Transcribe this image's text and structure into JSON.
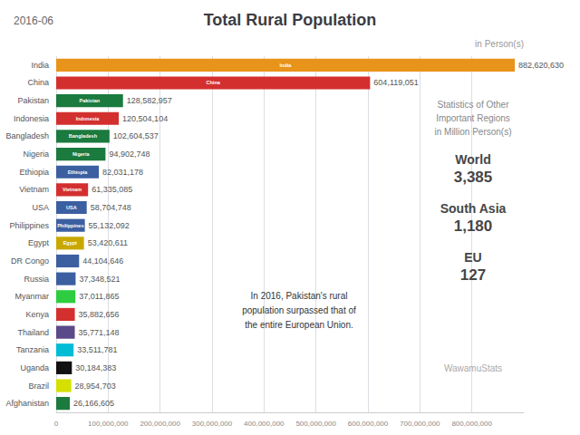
{
  "chart_data": {
    "type": "bar",
    "orientation": "horizontal",
    "title": "Total Rural Population",
    "subtitle": "2016-06",
    "categories": [
      "India",
      "China",
      "Pakistan",
      "Indonesia",
      "Bangladesh",
      "Nigeria",
      "Ethiopia",
      "Vietnam",
      "USA",
      "Philippines",
      "Egypt",
      "DR Congo",
      "Russia",
      "Myanmar",
      "Kenya",
      "Thailand",
      "Tanzania",
      "Uganda",
      "Brazil",
      "Afghanistan"
    ],
    "values": [
      882620630,
      604119051,
      128582957,
      120504104,
      102604537,
      94902748,
      82031178,
      61335085,
      58704748,
      55132092,
      53420611,
      44104646,
      37348521,
      37011865,
      35882656,
      35771148,
      33511781,
      30184383,
      28954703,
      26166605
    ],
    "colors": [
      "#E8931A",
      "#D32F2F",
      "#1B7A3E",
      "#D32F2F",
      "#1B7A3E",
      "#1B7A3E",
      "#3B5FA0",
      "#D32F2F",
      "#3B5FA0",
      "#3B5FA0",
      "#C8A800",
      "#3B5FA0",
      "#3B5FA0",
      "#2ECC40",
      "#D32F2F",
      "#5B4A8A",
      "#00BCD4",
      "#111111",
      "#D4E000",
      "#1B7A3E"
    ],
    "data_labels": true,
    "value_labels": [
      "882,620,630",
      "604,119,051",
      "128,582,957",
      "120,504,104",
      "102,604,537",
      "94,902,748",
      "82,031,178",
      "61,335,085",
      "58,704,748",
      "55,132,092",
      "53,420,611",
      "44,104,646",
      "37,348,521",
      "37,011,865",
      "35,882,656",
      "35,771,148",
      "33,511,781",
      "30,184,383",
      "28,954,703",
      "26,166,605"
    ],
    "inner_labels": [
      "India",
      "China",
      "Pakistan",
      "Indonesia",
      "Bangladesh",
      "Nigeria",
      "Ethiopia",
      "Vietnam",
      "USA",
      "Philippines",
      "Egypt",
      null,
      null,
      null,
      null,
      null,
      null,
      null,
      null,
      null
    ],
    "xlim": [
      0,
      900000000
    ],
    "xticks": [
      0,
      {
        "value": 100000000,
        "label": "100,000,000"
      },
      {
        "value": 200000000,
        "label": "200,000,000"
      },
      {
        "value": 300000000,
        "label": "300,000,000"
      },
      {
        "value": 400000000,
        "label": "400,000,000"
      },
      {
        "value": 500000000,
        "label": "500,000,000"
      },
      {
        "value": 600000000,
        "label": "600,000,000"
      },
      {
        "value": 700000000,
        "label": "700,000,000"
      },
      {
        "value": 800000000,
        "label": "800,000,000"
      }
    ],
    "grid": true,
    "annotations": [
      "in Person(s)",
      "Statistics of Other\nImportant Regions\nin Million Person(s)",
      "World",
      "3,385",
      "South Asia",
      "1,180",
      "EU",
      "127",
      "In 2016, Pakistan's rural\npopulation surpassed that of\nthe entire European Union.",
      "WawamuStats"
    ]
  }
}
